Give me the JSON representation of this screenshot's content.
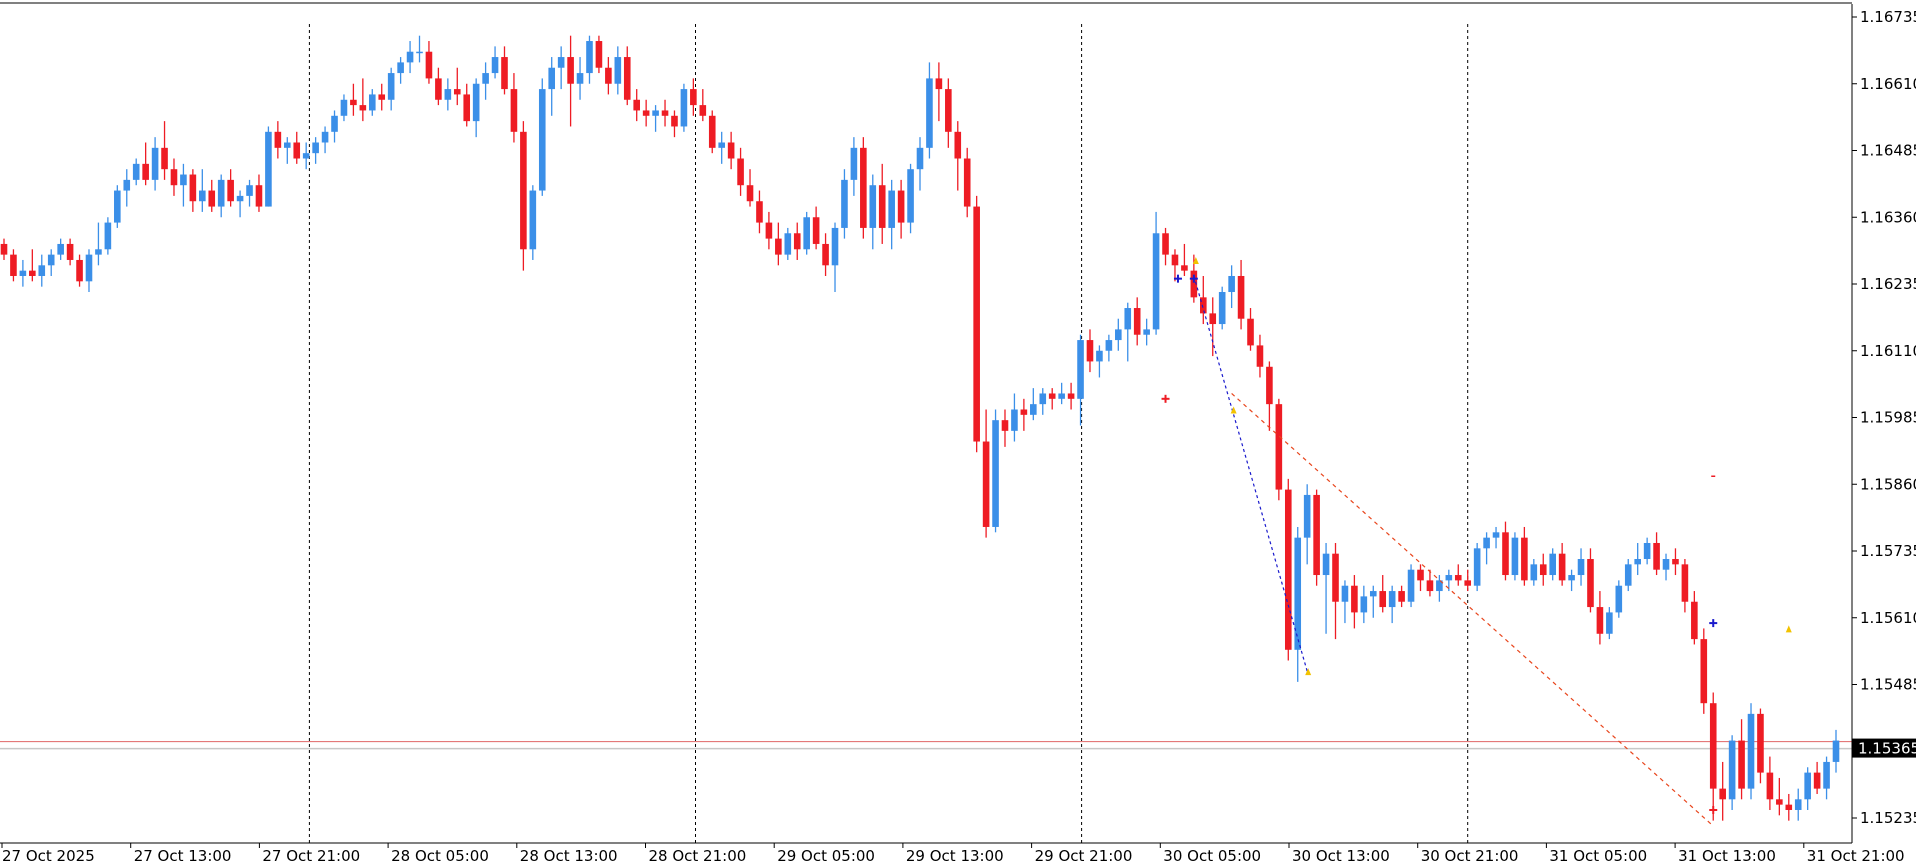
{
  "chart_data": {
    "type": "candlestick",
    "timeframe_note": "",
    "colors": {
      "bull": "#3b8fe8",
      "bear": "#ee1c24",
      "grid": "#000000",
      "bid_line": "#c8c8c8",
      "ask_line": "#e06666",
      "price_label_bg": "#000000",
      "zigzag_blue": "#1a1acc",
      "zigzag_red": "#e8451c"
    },
    "y_ticks": [
      "1.16735",
      "1.16610",
      "1.16485",
      "1.16360",
      "1.16235",
      "1.16110",
      "1.15985",
      "1.15860",
      "1.15735",
      "1.15610",
      "1.15485",
      "1.15365",
      "1.15235"
    ],
    "ylim": [
      1.1518,
      1.1678
    ],
    "x_ticks": [
      "27 Oct 2025",
      "27 Oct 13:00",
      "27 Oct 21:00",
      "28 Oct 05:00",
      "28 Oct 13:00",
      "28 Oct 21:00",
      "29 Oct 05:00",
      "29 Oct 13:00",
      "29 Oct 21:00",
      "30 Oct 05:00",
      "30 Oct 13:00",
      "30 Oct 21:00",
      "31 Oct 05:00",
      "31 Oct 13:00",
      "31 Oct 21:00"
    ],
    "day_separators": [
      "27 Oct 21:00",
      "28 Oct 21:00",
      "29 Oct 21:00",
      "30 Oct 21:00"
    ],
    "current_price": "1.15365",
    "bid": 1.15365,
    "ask": 1.15378,
    "candles": [
      [
        1.1631,
        1.1632,
        1.1628,
        1.1629
      ],
      [
        1.1629,
        1.163,
        1.1624,
        1.1625
      ],
      [
        1.1625,
        1.1628,
        1.1623,
        1.1626
      ],
      [
        1.1626,
        1.163,
        1.1624,
        1.1625
      ],
      [
        1.1625,
        1.1629,
        1.1623,
        1.1627
      ],
      [
        1.1627,
        1.163,
        1.1625,
        1.1629
      ],
      [
        1.1629,
        1.1632,
        1.1628,
        1.1631
      ],
      [
        1.1631,
        1.1632,
        1.1627,
        1.1628
      ],
      [
        1.1628,
        1.1629,
        1.1623,
        1.1624
      ],
      [
        1.1624,
        1.163,
        1.1622,
        1.1629
      ],
      [
        1.1629,
        1.1635,
        1.1627,
        1.163
      ],
      [
        1.163,
        1.1636,
        1.1629,
        1.1635
      ],
      [
        1.1635,
        1.1642,
        1.1634,
        1.1641
      ],
      [
        1.1641,
        1.1645,
        1.1638,
        1.1643
      ],
      [
        1.1643,
        1.1647,
        1.1642,
        1.1646
      ],
      [
        1.1646,
        1.165,
        1.1642,
        1.1643
      ],
      [
        1.1643,
        1.1651,
        1.1641,
        1.1649
      ],
      [
        1.1649,
        1.1654,
        1.1643,
        1.1645
      ],
      [
        1.1645,
        1.1647,
        1.164,
        1.1642
      ],
      [
        1.1642,
        1.1646,
        1.1638,
        1.1644
      ],
      [
        1.1644,
        1.1645,
        1.1637,
        1.1639
      ],
      [
        1.1639,
        1.1645,
        1.1637,
        1.1641
      ],
      [
        1.1641,
        1.1643,
        1.1637,
        1.1638
      ],
      [
        1.1638,
        1.1644,
        1.1636,
        1.1643
      ],
      [
        1.1643,
        1.1645,
        1.1638,
        1.1639
      ],
      [
        1.1639,
        1.1641,
        1.1636,
        1.164
      ],
      [
        1.164,
        1.1643,
        1.1638,
        1.1642
      ],
      [
        1.1642,
        1.1644,
        1.1637,
        1.1638
      ],
      [
        1.1638,
        1.1653,
        1.1638,
        1.1652
      ],
      [
        1.1652,
        1.1654,
        1.1647,
        1.1649
      ],
      [
        1.1649,
        1.1651,
        1.1646,
        1.165
      ],
      [
        1.165,
        1.1652,
        1.1646,
        1.1647
      ],
      [
        1.1647,
        1.165,
        1.1645,
        1.1648
      ],
      [
        1.1648,
        1.1651,
        1.1646,
        1.165
      ],
      [
        1.165,
        1.1653,
        1.1648,
        1.1652
      ],
      [
        1.1652,
        1.1656,
        1.165,
        1.1655
      ],
      [
        1.1655,
        1.1659,
        1.1654,
        1.1658
      ],
      [
        1.1658,
        1.1661,
        1.1655,
        1.1657
      ],
      [
        1.1657,
        1.1662,
        1.1654,
        1.1656
      ],
      [
        1.1656,
        1.166,
        1.1655,
        1.1659
      ],
      [
        1.1659,
        1.1661,
        1.1656,
        1.1658
      ],
      [
        1.1658,
        1.1664,
        1.1656,
        1.1663
      ],
      [
        1.1663,
        1.1666,
        1.1661,
        1.1665
      ],
      [
        1.1665,
        1.1669,
        1.1663,
        1.1667
      ],
      [
        1.1667,
        1.167,
        1.1665,
        1.1667
      ],
      [
        1.1667,
        1.1669,
        1.1661,
        1.1662
      ],
      [
        1.1662,
        1.1664,
        1.1657,
        1.1658
      ],
      [
        1.1658,
        1.1662,
        1.1656,
        1.166
      ],
      [
        1.166,
        1.1664,
        1.1657,
        1.1659
      ],
      [
        1.1659,
        1.1661,
        1.1653,
        1.1654
      ],
      [
        1.1654,
        1.1662,
        1.1651,
        1.1661
      ],
      [
        1.1661,
        1.1665,
        1.1658,
        1.1663
      ],
      [
        1.1663,
        1.1668,
        1.1662,
        1.1666
      ],
      [
        1.1666,
        1.1668,
        1.1659,
        1.166
      ],
      [
        1.166,
        1.1663,
        1.165,
        1.1652
      ],
      [
        1.1652,
        1.1654,
        1.1626,
        1.163
      ],
      [
        1.163,
        1.1642,
        1.1628,
        1.1641
      ],
      [
        1.1641,
        1.1662,
        1.164,
        1.166
      ],
      [
        1.166,
        1.1666,
        1.1655,
        1.1664
      ],
      [
        1.1664,
        1.1668,
        1.166,
        1.1666
      ],
      [
        1.1666,
        1.167,
        1.1653,
        1.1661
      ],
      [
        1.1661,
        1.1666,
        1.1658,
        1.1663
      ],
      [
        1.1663,
        1.167,
        1.1661,
        1.1669
      ],
      [
        1.1669,
        1.167,
        1.1663,
        1.1664
      ],
      [
        1.1664,
        1.1666,
        1.1659,
        1.1661
      ],
      [
        1.1661,
        1.1668,
        1.1659,
        1.1666
      ],
      [
        1.1666,
        1.1668,
        1.1657,
        1.1658
      ],
      [
        1.1658,
        1.166,
        1.1654,
        1.1656
      ],
      [
        1.1656,
        1.1658,
        1.1653,
        1.1655
      ],
      [
        1.1655,
        1.1657,
        1.1652,
        1.1656
      ],
      [
        1.1656,
        1.1658,
        1.1653,
        1.1655
      ],
      [
        1.1655,
        1.1656,
        1.1651,
        1.1653
      ],
      [
        1.1653,
        1.1661,
        1.1652,
        1.166
      ],
      [
        1.166,
        1.1662,
        1.1655,
        1.1657
      ],
      [
        1.1657,
        1.166,
        1.1654,
        1.1655
      ],
      [
        1.1655,
        1.1656,
        1.1648,
        1.1649
      ],
      [
        1.1649,
        1.1652,
        1.1646,
        1.165
      ],
      [
        1.165,
        1.1652,
        1.1645,
        1.1647
      ],
      [
        1.1647,
        1.1649,
        1.164,
        1.1642
      ],
      [
        1.1642,
        1.1645,
        1.1638,
        1.1639
      ],
      [
        1.1639,
        1.1641,
        1.1633,
        1.1635
      ],
      [
        1.1635,
        1.1637,
        1.163,
        1.1632
      ],
      [
        1.1632,
        1.1635,
        1.1627,
        1.1629
      ],
      [
        1.1629,
        1.1634,
        1.1628,
        1.1633
      ],
      [
        1.1633,
        1.1635,
        1.1628,
        1.163
      ],
      [
        1.163,
        1.1637,
        1.1629,
        1.1636
      ],
      [
        1.1636,
        1.1638,
        1.163,
        1.1631
      ],
      [
        1.1631,
        1.1633,
        1.1625,
        1.1627
      ],
      [
        1.1627,
        1.1635,
        1.1622,
        1.1634
      ],
      [
        1.1634,
        1.1645,
        1.1632,
        1.1643
      ],
      [
        1.1643,
        1.1651,
        1.164,
        1.1649
      ],
      [
        1.1649,
        1.1651,
        1.1632,
        1.1634
      ],
      [
        1.1634,
        1.1644,
        1.163,
        1.1642
      ],
      [
        1.1642,
        1.1646,
        1.1631,
        1.1634
      ],
      [
        1.1634,
        1.1643,
        1.163,
        1.1641
      ],
      [
        1.1641,
        1.1643,
        1.1632,
        1.1635
      ],
      [
        1.1635,
        1.1646,
        1.1633,
        1.1645
      ],
      [
        1.1645,
        1.1651,
        1.1641,
        1.1649
      ],
      [
        1.1649,
        1.1665,
        1.1647,
        1.1662
      ],
      [
        1.1662,
        1.1665,
        1.1654,
        1.166
      ],
      [
        1.166,
        1.1662,
        1.1649,
        1.1652
      ],
      [
        1.1652,
        1.1654,
        1.1641,
        1.1647
      ],
      [
        1.1647,
        1.1649,
        1.1636,
        1.1638
      ],
      [
        1.1638,
        1.164,
        1.1592,
        1.1594
      ],
      [
        1.1594,
        1.16,
        1.1576,
        1.1578
      ],
      [
        1.1578,
        1.16,
        1.1577,
        1.1598
      ],
      [
        1.1598,
        1.16,
        1.1593,
        1.1596
      ],
      [
        1.1596,
        1.1603,
        1.1594,
        1.16
      ],
      [
        1.16,
        1.1602,
        1.1596,
        1.1599
      ],
      [
        1.1599,
        1.1604,
        1.1598,
        1.1601
      ],
      [
        1.1601,
        1.1604,
        1.1599,
        1.1603
      ],
      [
        1.1603,
        1.1604,
        1.16,
        1.1602
      ],
      [
        1.1602,
        1.1605,
        1.1601,
        1.1603
      ],
      [
        1.1603,
        1.1605,
        1.16,
        1.1602
      ],
      [
        1.1602,
        1.1614,
        1.1597,
        1.1613
      ],
      [
        1.1613,
        1.1615,
        1.1607,
        1.1609
      ],
      [
        1.1609,
        1.1612,
        1.1606,
        1.1611
      ],
      [
        1.1611,
        1.1614,
        1.1609,
        1.1613
      ],
      [
        1.1613,
        1.1617,
        1.1611,
        1.1615
      ],
      [
        1.1615,
        1.162,
        1.1609,
        1.1619
      ],
      [
        1.1619,
        1.1621,
        1.1612,
        1.1614
      ],
      [
        1.1614,
        1.1617,
        1.1612,
        1.1615
      ],
      [
        1.1615,
        1.1637,
        1.1614,
        1.1633
      ],
      [
        1.1633,
        1.1634,
        1.1627,
        1.1629
      ],
      [
        1.1629,
        1.163,
        1.1624,
        1.1627
      ],
      [
        1.1627,
        1.1631,
        1.1625,
        1.1626
      ],
      [
        1.1626,
        1.1629,
        1.162,
        1.1621
      ],
      [
        1.1621,
        1.1625,
        1.1616,
        1.1618
      ],
      [
        1.1618,
        1.1621,
        1.161,
        1.1616
      ],
      [
        1.1616,
        1.1623,
        1.1615,
        1.1622
      ],
      [
        1.1622,
        1.1627,
        1.1619,
        1.1625
      ],
      [
        1.1625,
        1.1628,
        1.1615,
        1.1617
      ],
      [
        1.1617,
        1.1619,
        1.1611,
        1.1612
      ],
      [
        1.1612,
        1.1614,
        1.1606,
        1.1608
      ],
      [
        1.1608,
        1.1609,
        1.1596,
        1.1601
      ],
      [
        1.1601,
        1.1602,
        1.1583,
        1.1585
      ],
      [
        1.1585,
        1.1587,
        1.1553,
        1.1555
      ],
      [
        1.1555,
        1.1578,
        1.1549,
        1.1576
      ],
      [
        1.1576,
        1.1586,
        1.1571,
        1.1584
      ],
      [
        1.1584,
        1.1585,
        1.1567,
        1.1569
      ],
      [
        1.1569,
        1.1575,
        1.1558,
        1.1573
      ],
      [
        1.1573,
        1.1575,
        1.1557,
        1.1564
      ],
      [
        1.1564,
        1.1568,
        1.156,
        1.1567
      ],
      [
        1.1567,
        1.1569,
        1.1559,
        1.1562
      ],
      [
        1.1562,
        1.1567,
        1.156,
        1.1565
      ],
      [
        1.1565,
        1.1567,
        1.1561,
        1.1566
      ],
      [
        1.1566,
        1.1569,
        1.1562,
        1.1563
      ],
      [
        1.1563,
        1.1567,
        1.156,
        1.1566
      ],
      [
        1.1566,
        1.1567,
        1.1563,
        1.1564
      ],
      [
        1.1564,
        1.1571,
        1.1563,
        1.157
      ],
      [
        1.157,
        1.1571,
        1.1566,
        1.1568
      ],
      [
        1.1568,
        1.157,
        1.1565,
        1.1566
      ],
      [
        1.1566,
        1.1569,
        1.1564,
        1.1568
      ],
      [
        1.1568,
        1.157,
        1.1566,
        1.1569
      ],
      [
        1.1569,
        1.1571,
        1.1567,
        1.1568
      ],
      [
        1.1568,
        1.157,
        1.1566,
        1.1567
      ],
      [
        1.1567,
        1.1575,
        1.1566,
        1.1574
      ],
      [
        1.1574,
        1.1577,
        1.1571,
        1.1576
      ],
      [
        1.1576,
        1.1578,
        1.1574,
        1.1577
      ],
      [
        1.1577,
        1.1579,
        1.1568,
        1.1569
      ],
      [
        1.1569,
        1.1577,
        1.1568,
        1.1576
      ],
      [
        1.1576,
        1.1578,
        1.1567,
        1.1568
      ],
      [
        1.1568,
        1.1572,
        1.1567,
        1.1571
      ],
      [
        1.1571,
        1.1573,
        1.1567,
        1.1569
      ],
      [
        1.1569,
        1.1574,
        1.1568,
        1.1573
      ],
      [
        1.1573,
        1.1575,
        1.1567,
        1.1568
      ],
      [
        1.1568,
        1.157,
        1.1566,
        1.1569
      ],
      [
        1.1569,
        1.1574,
        1.1567,
        1.1572
      ],
      [
        1.1572,
        1.1574,
        1.1562,
        1.1563
      ],
      [
        1.1563,
        1.1566,
        1.1556,
        1.1558
      ],
      [
        1.1558,
        1.1563,
        1.1557,
        1.1562
      ],
      [
        1.1562,
        1.1568,
        1.1561,
        1.1567
      ],
      [
        1.1567,
        1.1572,
        1.1566,
        1.1571
      ],
      [
        1.1571,
        1.1575,
        1.1569,
        1.1572
      ],
      [
        1.1572,
        1.1576,
        1.1571,
        1.1575
      ],
      [
        1.1575,
        1.1577,
        1.1569,
        1.157
      ],
      [
        1.157,
        1.1573,
        1.1568,
        1.1572
      ],
      [
        1.1572,
        1.1574,
        1.1569,
        1.1571
      ],
      [
        1.1571,
        1.1572,
        1.1562,
        1.1564
      ],
      [
        1.1564,
        1.1566,
        1.1556,
        1.1557
      ],
      [
        1.1557,
        1.1559,
        1.1543,
        1.1545
      ],
      [
        1.1545,
        1.1547,
        1.1523,
        1.1529
      ],
      [
        1.1529,
        1.1534,
        1.1523,
        1.1527
      ],
      [
        1.1527,
        1.1539,
        1.1525,
        1.1538
      ],
      [
        1.1538,
        1.1542,
        1.1527,
        1.1529
      ],
      [
        1.1529,
        1.1545,
        1.1527,
        1.1543
      ],
      [
        1.1543,
        1.1544,
        1.153,
        1.1532
      ],
      [
        1.1532,
        1.1535,
        1.1525,
        1.1527
      ],
      [
        1.1527,
        1.1531,
        1.1524,
        1.1526
      ],
      [
        1.1526,
        1.1528,
        1.1523,
        1.1525
      ],
      [
        1.1525,
        1.1529,
        1.1523,
        1.1527
      ],
      [
        1.1527,
        1.1533,
        1.1525,
        1.1532
      ],
      [
        1.1532,
        1.1534,
        1.1528,
        1.1529
      ],
      [
        1.1529,
        1.1535,
        1.1527,
        1.1534
      ],
      [
        1.1534,
        1.154,
        1.1532,
        1.1538
      ]
    ]
  }
}
